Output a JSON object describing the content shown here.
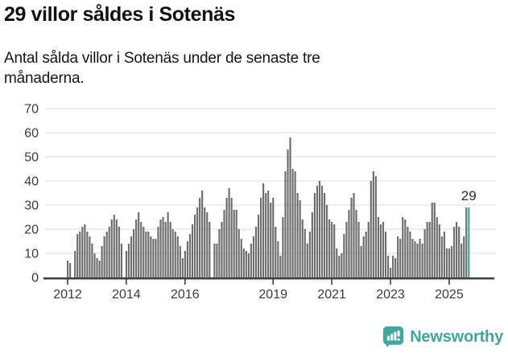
{
  "header": {
    "title": "29 villor såldes i Sotenäs",
    "subtitle": "Antal sålda villor i Sotenäs under de senaste tre månaderna."
  },
  "chart_data": {
    "type": "bar",
    "title": "29 villor såldes i Sotenäs",
    "xlabel": "",
    "ylabel": "",
    "ylim": [
      0,
      70
    ],
    "grid": "horizontal",
    "start_month": "2012-01",
    "end_month": "2025-09",
    "x_tick_labels": [
      "2012",
      "2014",
      "2016",
      "2019",
      "2021",
      "2023",
      "2025"
    ],
    "x_tick_month_index": [
      0,
      24,
      48,
      84,
      108,
      132,
      156
    ],
    "y_ticks": [
      0,
      10,
      20,
      30,
      40,
      50,
      60,
      70
    ],
    "values": [
      7,
      6,
      0,
      11,
      18,
      19,
      21,
      22,
      19,
      17,
      14,
      10,
      8,
      7,
      13,
      17,
      19,
      21,
      24,
      26,
      24,
      21,
      14,
      0,
      11,
      14,
      17,
      20,
      24,
      27,
      23,
      21,
      19,
      19,
      17,
      16,
      16,
      21,
      24,
      25,
      23,
      27,
      23,
      20,
      19,
      17,
      13,
      8,
      11,
      15,
      18,
      22,
      26,
      29,
      33,
      36,
      29,
      27,
      23,
      0,
      14,
      14,
      20,
      23,
      28,
      33,
      37,
      33,
      28,
      28,
      20,
      16,
      12,
      11,
      10,
      14,
      17,
      21,
      26,
      33,
      39,
      35,
      36,
      31,
      33,
      21,
      15,
      9,
      25,
      44,
      53,
      58,
      45,
      44,
      35,
      32,
      24,
      20,
      14,
      19,
      27,
      35,
      38,
      40,
      38,
      35,
      30,
      24,
      23,
      22,
      12,
      9,
      10,
      18,
      23,
      28,
      33,
      35,
      28,
      23,
      13,
      17,
      19,
      23,
      40,
      44,
      42,
      25,
      22,
      23,
      19,
      9,
      4,
      9,
      8,
      17,
      16,
      25,
      24,
      21,
      19,
      16,
      15,
      14,
      16,
      14,
      20,
      23,
      23,
      31,
      31,
      25,
      22,
      17,
      19,
      12,
      12,
      13,
      21,
      23,
      21,
      14,
      17,
      29,
      29
    ],
    "highlight_last_bar": true,
    "annotation": {
      "text": "29",
      "value": 29
    },
    "colors": {
      "bar": "#6d6d6d",
      "highlight": "#2fa8a1",
      "grid": "#e3e3e3",
      "axis": "#3f3f3f",
      "tick_label": "#3a3a3a"
    }
  },
  "footer": {
    "brand": "Newsworthy",
    "brand_color": "#3fa59f",
    "logo_icon": "newsworthy-speech-bubble-chart-icon"
  }
}
